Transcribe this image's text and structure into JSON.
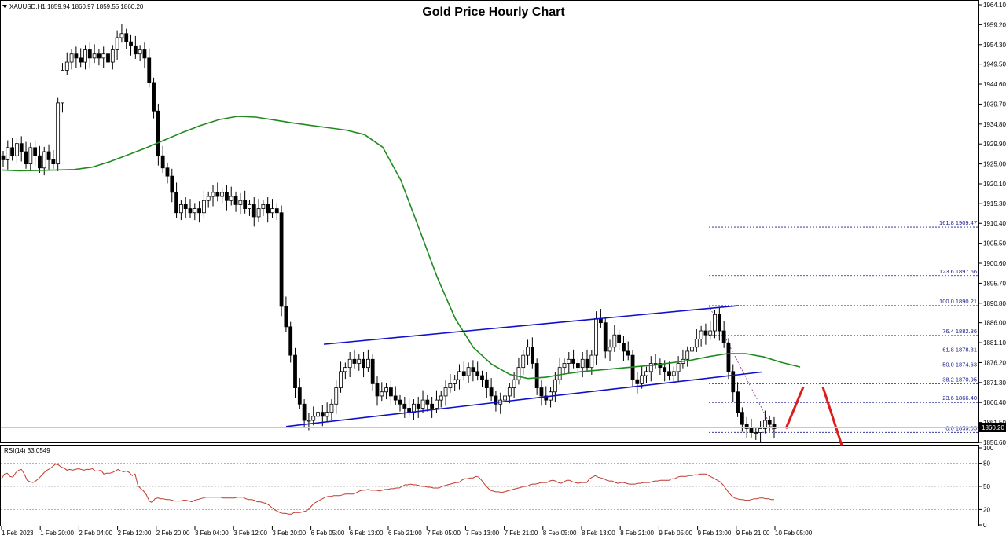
{
  "chart_data": {
    "type": "candlestick",
    "title": "Gold Price Hourly Chart",
    "symbol_info": "XAUUSD,H1  1859.94 1860.97 1859.55 1860.20",
    "price_axis": {
      "ylim": [
        1856.6,
        1964.1
      ],
      "ticks": [
        "1964.10",
        "1959.20",
        "1954.30",
        "1949.50",
        "1944.60",
        "1939.70",
        "1934.80",
        "1929.90",
        "1925.00",
        "1920.10",
        "1915.30",
        "1910.40",
        "1905.50",
        "1900.60",
        "1895.70",
        "1890.80",
        "1886.00",
        "1881.10",
        "1876.20",
        "1871.30",
        "1866.40",
        "1861.50",
        "1856.60"
      ]
    },
    "current_price": "1860.20",
    "time_axis_labels": [
      "1 Feb 2023",
      "1 Feb 20:00",
      "2 Feb 04:00",
      "2 Feb 12:00",
      "2 Feb 20:00",
      "3 Feb 04:00",
      "3 Feb 12:00",
      "3 Feb 20:00",
      "6 Feb 05:00",
      "6 Feb 13:00",
      "6 Feb 21:00",
      "7 Feb 05:00",
      "7 Feb 13:00",
      "7 Feb 21:00",
      "8 Feb 05:00",
      "8 Feb 13:00",
      "8 Feb 21:00",
      "9 Feb 05:00",
      "9 Feb 13:00",
      "9 Feb 21:00",
      "10 Feb 05:00"
    ],
    "closes": [
      1926,
      1929,
      1927,
      1930,
      1928,
      1925,
      1929,
      1927,
      1924,
      1928,
      1926,
      1925,
      1940,
      1948,
      1950,
      1952,
      1951,
      1950,
      1953,
      1951,
      1952,
      1951,
      1952,
      1950,
      1953,
      1956,
      1957,
      1955,
      1954,
      1952,
      1953,
      1951,
      1945,
      1938,
      1927,
      1924,
      1922,
      1918,
      1913,
      1915,
      1914,
      1913,
      1914,
      1913,
      1916,
      1917,
      1918,
      1917,
      1918,
      1916,
      1917,
      1915,
      1916,
      1914,
      1915,
      1912,
      1914,
      1915,
      1913,
      1914,
      1913,
      1890,
      1885,
      1878,
      1870,
      1866,
      1862,
      1862,
      1863,
      1864,
      1863,
      1864,
      1866,
      1870,
      1874,
      1875,
      1877,
      1876,
      1877,
      1875,
      1877,
      1871,
      1868,
      1869,
      1870,
      1868,
      1867,
      1866,
      1865,
      1864,
      1866,
      1865,
      1867,
      1866,
      1865,
      1867,
      1868,
      1870,
      1871,
      1872,
      1874,
      1873,
      1875,
      1874,
      1873,
      1872,
      1870,
      1868,
      1866,
      1867,
      1868,
      1870,
      1872,
      1875,
      1878,
      1880,
      1876,
      1870,
      1868,
      1867,
      1869,
      1872,
      1875,
      1876,
      1877,
      1876,
      1875,
      1877,
      1875,
      1878,
      1887,
      1886,
      1879,
      1880,
      1883,
      1881,
      1879,
      1878,
      1872,
      1871,
      1873,
      1874,
      1876,
      1876,
      1875,
      1874,
      1873,
      1874,
      1876,
      1877,
      1879,
      1880,
      1882,
      1884,
      1883,
      1884,
      1888,
      1884,
      1881,
      1874,
      1869,
      1864,
      1861,
      1860,
      1859,
      1859,
      1860,
      1862,
      1861,
      1860
    ],
    "moving_average": {
      "color": "#1f8a1f",
      "values": [
        1923.5,
        1923.3,
        1923.4,
        1923.5,
        1923.6,
        1924.2,
        1925.6,
        1927.3,
        1929.0,
        1930.9,
        1932.8,
        1934.5,
        1935.9,
        1936.7,
        1936.5,
        1935.8,
        1935.1,
        1934.5,
        1933.9,
        1933.3,
        1932.2,
        1929.1,
        1921.0,
        1909.2,
        1897.2,
        1887.0,
        1879.9,
        1875.8,
        1873.3,
        1872.3,
        1872.6,
        1873.4,
        1874.0,
        1874.4,
        1874.8,
        1875.2,
        1875.6,
        1876.2,
        1876.8,
        1877.7,
        1878.4,
        1878.4,
        1877.6,
        1876.2,
        1875.1
      ],
      "line_points": 45
    },
    "channel": {
      "color": "#1010cc",
      "upper": [
        [
          1880.7,
          1890.2
        ]
      ],
      "lower": [
        [
          1860.5,
          1873.9
        ]
      ]
    },
    "projection": {
      "color": "#dd1c1c",
      "from": 1860.0,
      "peak": 1870.2,
      "target": 1855.9
    },
    "fibonacci": {
      "color": "#1a1a8c",
      "levels": [
        {
          "label": "161.8",
          "price": "1909.47"
        },
        {
          "label": "123.6",
          "price": "1897.56"
        },
        {
          "label": "100.0",
          "price": "1890.21"
        },
        {
          "label": "76.4",
          "price": "1882.86"
        },
        {
          "label": "61.8",
          "price": "1878.31"
        },
        {
          "label": "50.0",
          "price": "1874.63"
        },
        {
          "label": "38.2",
          "price": "1870.95"
        },
        {
          "label": "23.6",
          "price": "1866.40"
        },
        {
          "label": "0.0",
          "price": "1859.05"
        }
      ]
    },
    "rsi": {
      "label": "RSI(14) 33.0549",
      "ticks": [
        "100",
        "80",
        "50",
        "20",
        "0"
      ],
      "levels": [
        80,
        50,
        20
      ],
      "color": "#c0392b",
      "values": [
        60,
        66,
        67,
        63,
        62,
        68,
        71,
        72,
        66,
        58,
        56,
        55,
        57,
        60,
        64,
        68,
        71,
        73,
        76,
        79,
        78,
        75,
        74,
        71,
        72,
        71,
        72,
        73,
        72,
        71,
        72,
        72,
        73,
        70,
        70,
        71,
        66,
        67,
        67,
        68,
        70,
        72,
        70,
        69,
        70,
        68,
        64,
        66,
        51,
        47,
        44,
        39,
        31,
        29,
        34,
        35,
        34,
        34,
        33,
        33,
        32,
        31,
        31,
        31,
        32,
        32,
        31,
        30,
        32,
        33,
        34,
        35,
        36,
        36,
        36,
        36,
        36,
        36,
        35,
        35,
        35,
        35,
        35,
        36,
        36,
        36,
        34,
        33,
        33,
        32,
        30,
        30,
        29,
        28,
        26,
        23,
        20,
        18,
        16,
        15,
        15,
        14,
        14,
        16,
        16,
        16,
        17,
        18,
        20,
        24,
        28,
        30,
        32,
        34,
        36,
        37,
        37,
        38,
        38,
        38,
        39,
        40,
        40,
        40,
        40,
        42,
        44,
        45,
        45,
        46,
        45,
        45,
        45,
        44,
        45,
        46,
        46,
        47,
        47,
        48,
        48,
        50,
        52,
        52,
        53,
        52,
        52,
        51,
        50,
        50,
        49,
        49,
        48,
        48,
        48,
        50,
        51,
        52,
        53,
        54,
        55,
        55,
        58,
        60,
        60,
        61,
        61,
        63,
        62,
        58,
        53,
        49,
        45,
        44,
        43,
        43,
        42,
        43,
        44,
        45,
        46,
        47,
        48,
        49,
        50,
        50,
        52,
        53,
        53,
        54,
        55,
        55,
        55,
        57,
        58,
        57,
        55,
        54,
        56,
        58,
        58,
        56,
        55,
        54,
        55,
        55,
        55,
        60,
        62,
        64,
        62,
        61,
        60,
        58,
        57,
        57,
        55,
        54,
        55,
        55,
        54,
        53,
        53,
        53,
        54,
        54,
        55,
        55,
        55,
        56,
        57,
        57,
        58,
        58,
        58,
        58,
        60,
        60,
        62,
        63,
        63,
        63,
        64,
        64,
        65,
        65,
        66,
        66,
        66,
        64,
        62,
        60,
        58,
        56,
        52,
        47,
        42,
        38,
        35,
        34,
        33,
        33,
        32,
        32,
        33,
        34,
        34,
        35,
        35,
        34,
        34,
        33,
        33
      ]
    }
  }
}
